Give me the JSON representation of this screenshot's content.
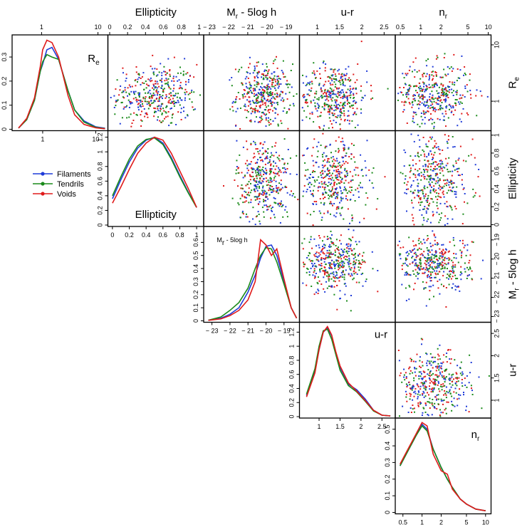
{
  "colors": {
    "Filaments": "#1f3bd8",
    "Tendrils": "#1a8a1a",
    "Voids": "#e01b1b"
  },
  "variables": [
    {
      "key": "Re",
      "top_label": "",
      "right_label": "R",
      "right_label_sub": "e",
      "diag_label": "R",
      "diag_label_sub": "e",
      "ticks": [
        {
          "v": 1,
          "t": "1"
        },
        {
          "v": 10,
          "t": "10"
        }
      ]
    },
    {
      "key": "Ellipticity",
      "top_label": "Ellipticity",
      "right_label": "Ellipticity",
      "diag_label": "Ellipticity",
      "ticks": [
        {
          "v": 0,
          "t": "0"
        },
        {
          "v": 0.2,
          "t": "0.2"
        },
        {
          "v": 0.4,
          "t": "0.4"
        },
        {
          "v": 0.6,
          "t": "0.6"
        },
        {
          "v": 0.8,
          "t": "0.8"
        },
        {
          "v": 1,
          "t": "1"
        }
      ]
    },
    {
      "key": "Mr",
      "top_label": "M",
      "top_label_sub": "r",
      "top_label_suffix": " - 5log h",
      "right_label": "M",
      "right_label_sub": "r",
      "right_label_suffix": " - 5log h",
      "diag_label": "M",
      "diag_label_sub": "r",
      "diag_label_suffix": " - 5log h",
      "ticks": [
        {
          "v": -23,
          "t": "− 23"
        },
        {
          "v": -22,
          "t": "− 22"
        },
        {
          "v": -21,
          "t": "− 21"
        },
        {
          "v": -20,
          "t": "− 20"
        },
        {
          "v": -19,
          "t": "− 19"
        }
      ]
    },
    {
      "key": "ur",
      "top_label": "u-r",
      "right_label": "u-r",
      "diag_label": "u-r",
      "ticks": [
        {
          "v": 1,
          "t": "1"
        },
        {
          "v": 1.5,
          "t": "1.5"
        },
        {
          "v": 2,
          "t": "2"
        },
        {
          "v": 2.5,
          "t": "2.5"
        }
      ]
    },
    {
      "key": "nr",
      "top_label": "n",
      "top_label_sub": "r",
      "right_label": "n",
      "right_label_sub": "r",
      "diag_label": "n",
      "diag_label_sub": "r",
      "ticks": [
        {
          "v": 0.5,
          "t": "0.5"
        },
        {
          "v": 1,
          "t": "1"
        },
        {
          "v": 2,
          "t": "2"
        },
        {
          "v": 5,
          "t": "5"
        },
        {
          "v": 10,
          "t": "10"
        }
      ]
    }
  ],
  "legend": [
    "Filaments",
    "Tendrils",
    "Voids"
  ],
  "chart_data": {
    "type": "scatter",
    "layout": "pairs-plot",
    "variables": [
      "Re",
      "Ellipticity",
      "Mr - 5log h",
      "u-r",
      "nr"
    ],
    "series_names": [
      "Filaments",
      "Tendrils",
      "Voids"
    ],
    "scales": {
      "Re": "log",
      "Ellipticity": "linear",
      "Mr - 5log h": "linear",
      "u-r": "linear",
      "nr": "log"
    },
    "ranges": {
      "Re": [
        0.3,
        15
      ],
      "Ellipticity": [
        -0.02,
        1.05
      ],
      "Mr - 5log h": [
        -23.3,
        -18.3
      ],
      "u-r": [
        0.6,
        2.75
      ],
      "nr": [
        0.42,
        11
      ]
    },
    "diagonal_ylim": {
      "Re": [
        0,
        0.38
      ],
      "Ellipticity": [
        0,
        1.25
      ],
      "Mr - 5log h": [
        0,
        0.7
      ],
      "u-r": [
        0,
        1.3
      ],
      "nr": [
        0,
        0.55
      ]
    },
    "diagonal_yticks": {
      "Re": [
        0,
        0.1,
        0.2,
        0.3
      ],
      "Ellipticity": [
        0,
        0.2,
        0.4,
        0.6,
        0.8,
        1,
        1.2
      ],
      "Mr - 5log h": [
        0,
        0.1,
        0.2,
        0.3,
        0.4,
        0.5,
        0.6
      ],
      "u-r": [
        0,
        0.2,
        0.4,
        0.6,
        0.8,
        1,
        1.2
      ],
      "nr": [
        0,
        0.1,
        0.2,
        0.3,
        0.4,
        0.5
      ]
    },
    "densities": {
      "Re": {
        "x": [
          0.35,
          0.5,
          0.7,
          0.9,
          1.0,
          1.2,
          1.5,
          2,
          3,
          4,
          6,
          10,
          15
        ],
        "Filaments": [
          0.005,
          0.04,
          0.12,
          0.24,
          0.27,
          0.33,
          0.34,
          0.29,
          0.16,
          0.08,
          0.035,
          0.01,
          0.004
        ],
        "Tendrils": [
          0.005,
          0.04,
          0.12,
          0.24,
          0.28,
          0.31,
          0.3,
          0.29,
          0.16,
          0.08,
          0.03,
          0.008,
          0.003
        ],
        "Voids": [
          0.005,
          0.045,
          0.13,
          0.26,
          0.33,
          0.37,
          0.36,
          0.3,
          0.14,
          0.06,
          0.02,
          0.006,
          0.002
        ]
      },
      "Ellipticity": {
        "x": [
          0,
          0.1,
          0.2,
          0.3,
          0.4,
          0.5,
          0.6,
          0.7,
          0.8,
          0.9,
          1.0
        ],
        "Filaments": [
          0.36,
          0.62,
          0.86,
          1.05,
          1.16,
          1.2,
          1.12,
          0.92,
          0.68,
          0.45,
          0.24
        ],
        "Tendrils": [
          0.4,
          0.66,
          0.9,
          1.08,
          1.17,
          1.19,
          1.1,
          0.9,
          0.66,
          0.44,
          0.24
        ],
        "Voids": [
          0.3,
          0.52,
          0.76,
          0.98,
          1.12,
          1.2,
          1.16,
          0.98,
          0.74,
          0.5,
          0.24
        ]
      },
      "Mr - 5log h": {
        "x": [
          -23.2,
          -22.5,
          -22,
          -21.5,
          -21,
          -20.6,
          -20.3,
          -20,
          -19.7,
          -19.4,
          -19,
          -18.6,
          -18.3
        ],
        "Filaments": [
          0.005,
          0.02,
          0.05,
          0.1,
          0.22,
          0.35,
          0.48,
          0.57,
          0.58,
          0.5,
          0.3,
          0.1,
          0.02
        ],
        "Tendrils": [
          0.005,
          0.03,
          0.08,
          0.14,
          0.25,
          0.4,
          0.5,
          0.56,
          0.55,
          0.45,
          0.28,
          0.1,
          0.02
        ],
        "Voids": [
          0.004,
          0.015,
          0.04,
          0.08,
          0.16,
          0.3,
          0.62,
          0.58,
          0.5,
          0.55,
          0.32,
          0.1,
          0.02
        ]
      },
      "u-r": {
        "x": [
          0.7,
          0.9,
          1.0,
          1.1,
          1.2,
          1.3,
          1.4,
          1.5,
          1.7,
          1.9,
          2.1,
          2.3,
          2.5,
          2.7
        ],
        "Filaments": [
          0.3,
          0.65,
          0.95,
          1.2,
          1.26,
          1.15,
          0.9,
          0.7,
          0.46,
          0.38,
          0.25,
          0.09,
          0.02,
          0.01
        ],
        "Tendrils": [
          0.32,
          0.68,
          1.0,
          1.22,
          1.24,
          1.1,
          0.88,
          0.66,
          0.44,
          0.35,
          0.22,
          0.08,
          0.02,
          0.01
        ],
        "Voids": [
          0.28,
          0.62,
          0.95,
          1.2,
          1.28,
          1.16,
          0.92,
          0.72,
          0.48,
          0.36,
          0.23,
          0.09,
          0.02,
          0.01
        ]
      },
      "nr": {
        "x": [
          0.45,
          0.6,
          0.8,
          1.0,
          1.2,
          1.5,
          2,
          2.5,
          3,
          4,
          5,
          7,
          10
        ],
        "Filaments": [
          0.28,
          0.37,
          0.46,
          0.53,
          0.5,
          0.38,
          0.27,
          0.2,
          0.15,
          0.08,
          0.05,
          0.02,
          0.01
        ],
        "Tendrils": [
          0.28,
          0.37,
          0.46,
          0.52,
          0.49,
          0.38,
          0.27,
          0.2,
          0.15,
          0.08,
          0.05,
          0.02,
          0.01
        ],
        "Voids": [
          0.29,
          0.38,
          0.47,
          0.54,
          0.52,
          0.35,
          0.25,
          0.23,
          0.14,
          0.08,
          0.05,
          0.02,
          0.01
        ]
      }
    },
    "scatter_centers": {
      "Re": {
        "center": 1.3,
        "spread": 0.28
      },
      "Ellipticity": {
        "center": 0.5,
        "spread": 0.24
      },
      "Mr - 5log h": {
        "center": -20.2,
        "spread": 0.7
      },
      "u-r": {
        "center": 1.35,
        "spread": 0.38
      },
      "nr": {
        "center": 1.5,
        "spread": 0.28
      }
    },
    "legend_position": "left, below first diagonal panel"
  }
}
